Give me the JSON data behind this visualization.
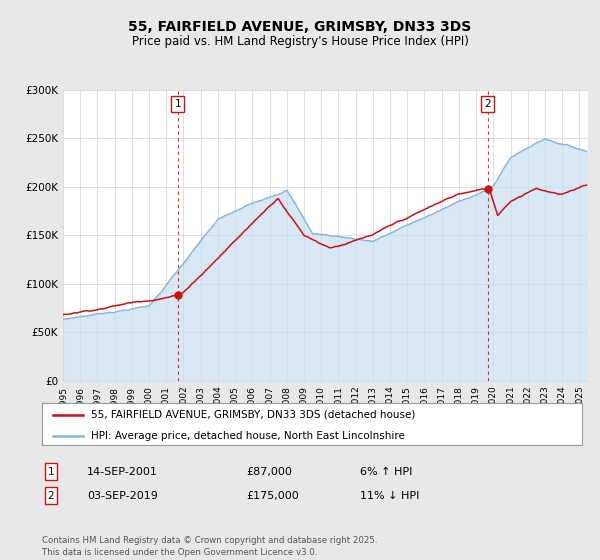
{
  "title": "55, FAIRFIELD AVENUE, GRIMSBY, DN33 3DS",
  "subtitle": "Price paid vs. HM Land Registry's House Price Index (HPI)",
  "ylim": [
    0,
    300000
  ],
  "yticks": [
    0,
    50000,
    100000,
    150000,
    200000,
    250000,
    300000
  ],
  "ytick_labels": [
    "£0",
    "£50K",
    "£100K",
    "£150K",
    "£200K",
    "£250K",
    "£300K"
  ],
  "hpi_color": "#8ab4d8",
  "hpi_fill_color": "#c8dff0",
  "price_color": "#cc1111",
  "vline_color": "#cc1111",
  "marker1_date_label": "14-SEP-2001",
  "marker1_price": "£87,000",
  "marker1_hpi": "6% ↑ HPI",
  "marker2_date_label": "03-SEP-2019",
  "marker2_price": "£175,000",
  "marker2_hpi": "11% ↓ HPI",
  "legend_line1": "55, FAIRFIELD AVENUE, GRIMSBY, DN33 3DS (detached house)",
  "legend_line2": "HPI: Average price, detached house, North East Lincolnshire",
  "footer": "Contains HM Land Registry data © Crown copyright and database right 2025.\nThis data is licensed under the Open Government Licence v3.0.",
  "background_color": "#e8e8e8",
  "plot_bg_color": "#ffffff"
}
